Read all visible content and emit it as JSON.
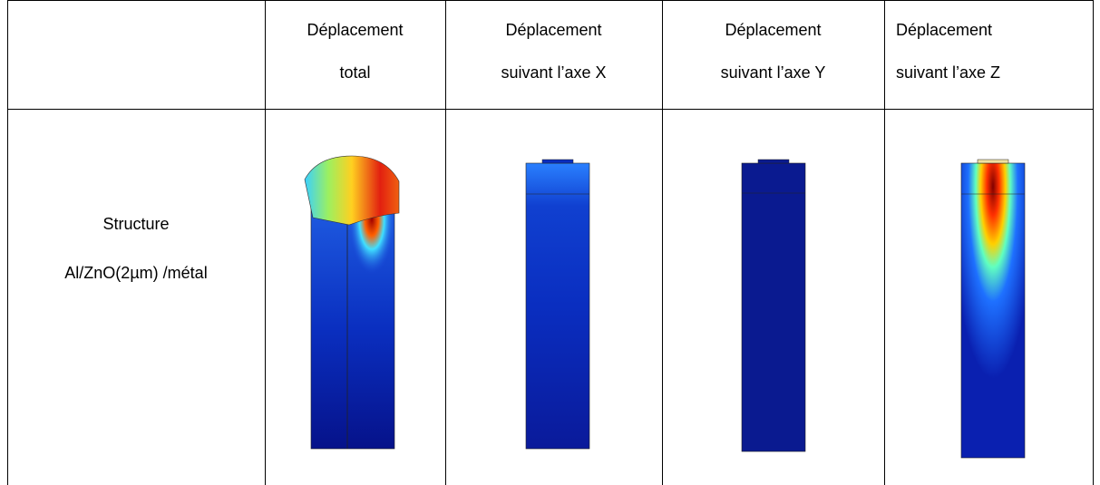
{
  "table": {
    "header": [
      [
        "Déplacement",
        "total"
      ],
      [
        "Déplacement",
        "suivant l’axe X"
      ],
      [
        "Déplacement",
        "suivant l’axe Y"
      ],
      [
        "Déplacement",
        "suivant l’axe Z"
      ]
    ],
    "rows": [
      {
        "label": [
          "Structure",
          "Al/ZnO(2µm) /métal"
        ]
      }
    ]
  }
}
